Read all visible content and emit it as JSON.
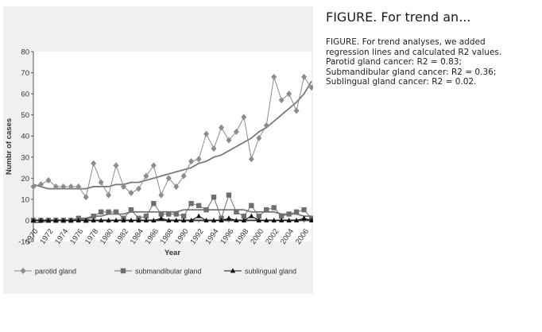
{
  "caption": {
    "title": "FIGURE. For trend an...",
    "lines": [
      "FIGURE. For trend analyses, we added",
      "regression lines and calculated R2 values.",
      "Parotid gland cancer: R2 = 0.83;",
      "Submandibular gland cancer: R2 = 0.36;",
      "Sublingual gland cancer: R2 = 0.02."
    ]
  },
  "colors": {
    "parotid": "#8c8c8c",
    "submandibular": "#6e6e6e",
    "sublingual": "#111111",
    "trend": "#7a7a7a",
    "axis": "#555555"
  },
  "chart_data": {
    "type": "line",
    "title": "",
    "xlabel": "Year",
    "ylabel": "Numbr of cases",
    "xlim": [
      1970,
      2007
    ],
    "ylim": [
      -10,
      80
    ],
    "yticks": [
      -10,
      0,
      10,
      20,
      30,
      40,
      50,
      60,
      70,
      80
    ],
    "xticks": [
      1970,
      1972,
      1974,
      1976,
      1978,
      1980,
      1982,
      1984,
      1986,
      1988,
      1990,
      1992,
      1994,
      1996,
      1998,
      2000,
      2002,
      2004,
      2006
    ],
    "legend_position": "bottom",
    "x": [
      1970,
      1971,
      1972,
      1973,
      1974,
      1975,
      1976,
      1977,
      1978,
      1979,
      1980,
      1981,
      1982,
      1983,
      1984,
      1985,
      1986,
      1987,
      1988,
      1989,
      1990,
      1991,
      1992,
      1993,
      1994,
      1995,
      1996,
      1997,
      1998,
      1999,
      2000,
      2001,
      2002,
      2003,
      2004,
      2005,
      2006,
      2007
    ],
    "series": [
      {
        "name": "parotid gland",
        "marker": "diamond",
        "values": [
          16,
          17,
          19,
          16,
          16,
          16,
          16,
          11,
          27,
          18,
          12,
          26,
          16,
          13,
          15,
          21,
          26,
          12,
          20,
          16,
          21,
          28,
          29,
          41,
          34,
          44,
          38,
          42,
          49,
          29,
          39,
          45,
          68,
          57,
          60,
          52,
          68,
          63
        ]
      },
      {
        "name": "submandibular gland",
        "marker": "square",
        "values": [
          0,
          0,
          0,
          0,
          0,
          0,
          1,
          0,
          2,
          4,
          4,
          4,
          1,
          5,
          1,
          2,
          8,
          3,
          3,
          3,
          2,
          8,
          7,
          5,
          11,
          1,
          12,
          4,
          2,
          7,
          2,
          5,
          6,
          2,
          3,
          4,
          5,
          1
        ]
      },
      {
        "name": "sublingual gland",
        "marker": "triangle",
        "values": [
          0,
          0,
          0,
          0,
          0,
          0,
          0,
          0,
          0,
          0,
          0,
          0,
          0,
          0,
          0,
          0,
          0,
          1,
          0,
          0,
          0,
          0,
          2,
          0,
          0,
          0,
          1,
          0,
          0,
          2,
          0,
          0,
          0,
          0,
          0,
          0,
          1,
          0
        ]
      }
    ],
    "trendlines": [
      {
        "series": "parotid gland",
        "r2": 0.83,
        "values": [
          17,
          16,
          15,
          15,
          15,
          15,
          15,
          15,
          16,
          16,
          16,
          17,
          17,
          18,
          18,
          19,
          20,
          21,
          22,
          23,
          24,
          25,
          27,
          28,
          30,
          31,
          33,
          35,
          37,
          39,
          42,
          44,
          47,
          50,
          53,
          56,
          60,
          66
        ]
      },
      {
        "series": "submandibular gland",
        "r2": 0.36,
        "values": [
          -1,
          -1,
          0,
          0,
          0,
          0,
          1,
          1,
          2,
          2,
          3,
          3,
          3,
          4,
          4,
          4,
          4,
          4,
          4,
          4,
          5,
          5,
          5,
          5,
          5,
          5,
          5,
          5,
          5,
          4,
          4,
          4,
          4,
          3,
          3,
          3,
          2,
          2
        ]
      },
      {
        "series": "sublingual gland",
        "r2": 0.02,
        "values": [
          0,
          0,
          0,
          0,
          0,
          0,
          0,
          0,
          0,
          0,
          0,
          0,
          0,
          0,
          0,
          0,
          0,
          0,
          0,
          0,
          0,
          0,
          0,
          0,
          0,
          0,
          0,
          0,
          0,
          0,
          0,
          0,
          0,
          0,
          0,
          0,
          0,
          0
        ]
      }
    ]
  }
}
